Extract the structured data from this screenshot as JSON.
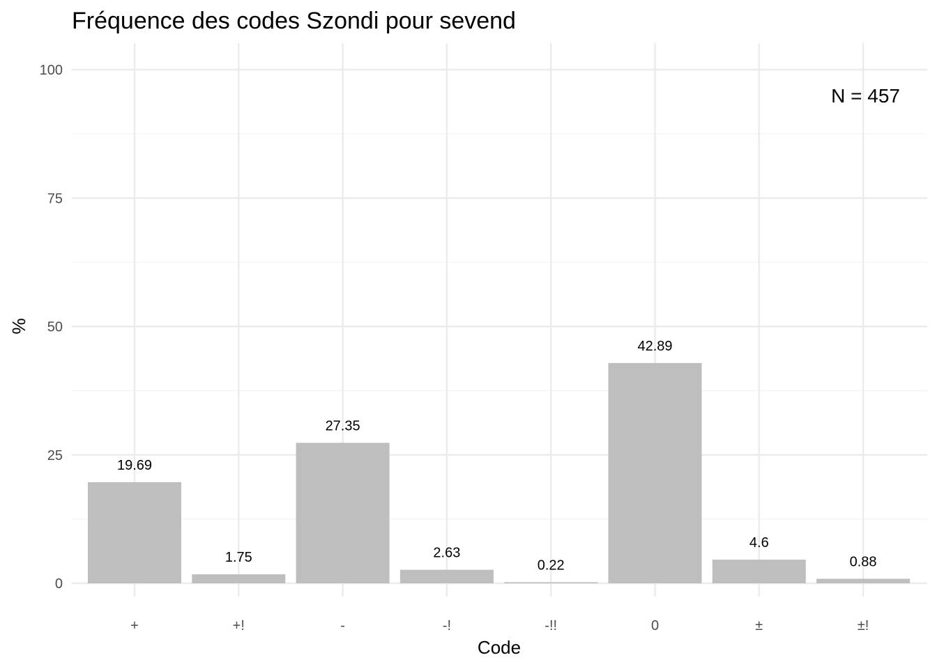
{
  "chart_data": {
    "type": "bar",
    "title": "Fréquence des codes Szondi pour sevend",
    "xlabel": "Code",
    "ylabel": "%",
    "categories": [
      "+",
      "+!",
      "-",
      "-!",
      "-!!",
      "0",
      "±",
      "±!"
    ],
    "values": [
      19.69,
      1.75,
      27.35,
      2.63,
      0.22,
      42.89,
      4.6,
      0.88
    ],
    "data_labels": [
      "19.69",
      "1.75",
      "27.35",
      "2.63",
      "0.22",
      "42.89",
      "4.6",
      "0.88"
    ],
    "ylim": [
      0,
      100
    ],
    "yticks": [
      0,
      25,
      50,
      75,
      100
    ],
    "ytick_labels": [
      "0",
      "25",
      "50",
      "75",
      "100"
    ],
    "annotation": "N = 457",
    "annotation_position": "top-right",
    "grid": true,
    "legend": "none",
    "colors": {
      "bar": "#bebebe",
      "grid_major": "#ebebeb",
      "grid_minor": "#f4f4f4",
      "tick_text": "#4d4d4d",
      "text": "#000000"
    }
  }
}
